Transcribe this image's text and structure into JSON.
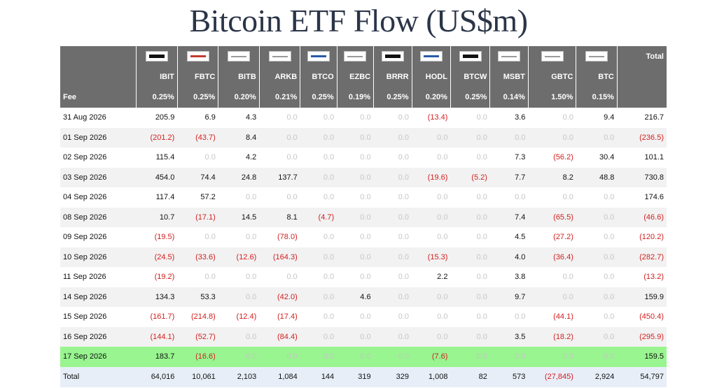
{
  "title": "Bitcoin ETF Flow (US$m)",
  "colors": {
    "header_bg": "#6d6d6d",
    "negative": "#d42020",
    "zero": "#c6c6c6",
    "highlight_row": "#98f58f",
    "total_row_bg": "#e8eef8"
  },
  "table": {
    "total_header": "Total",
    "fee_label": "Fee",
    "columns": [
      {
        "ticker": "IBIT",
        "fee": "0.25%",
        "logo": "blackrock-logo"
      },
      {
        "ticker": "FBTC",
        "fee": "0.25%",
        "logo": "fidelity-logo"
      },
      {
        "ticker": "BITB",
        "fee": "0.20%",
        "logo": "bitwise-logo"
      },
      {
        "ticker": "ARKB",
        "fee": "0.21%",
        "logo": "ark-logo"
      },
      {
        "ticker": "BTCO",
        "fee": "0.25%",
        "logo": "invesco-logo"
      },
      {
        "ticker": "EZBC",
        "fee": "0.19%",
        "logo": "franklin-logo"
      },
      {
        "ticker": "BRRR",
        "fee": "0.25%",
        "logo": "valkyrie-logo"
      },
      {
        "ticker": "HODL",
        "fee": "0.20%",
        "logo": "vaneck-logo"
      },
      {
        "ticker": "BTCW",
        "fee": "0.25%",
        "logo": "wisdomtree-logo"
      },
      {
        "ticker": "MSBT",
        "fee": "0.14%",
        "logo": "morgan-stanley-logo"
      },
      {
        "ticker": "GBTC",
        "fee": "1.50%",
        "logo": "grayscale-logo"
      },
      {
        "ticker": "BTC",
        "fee": "0.15%",
        "logo": "grayscale-mini-logo"
      }
    ],
    "rows": [
      {
        "date": "31 Aug 2026",
        "values": [
          "205.9",
          "6.9",
          "4.3",
          "0.0",
          "0.0",
          "0.0",
          "0.0",
          "(13.4)",
          "0.0",
          "3.6",
          "0.0",
          "9.4"
        ],
        "total": "216.7",
        "highlight": false
      },
      {
        "date": "01 Sep 2026",
        "values": [
          "(201.2)",
          "(43.7)",
          "8.4",
          "0.0",
          "0.0",
          "0.0",
          "0.0",
          "0.0",
          "0.0",
          "0.0",
          "0.0",
          "0.0"
        ],
        "total": "(236.5)",
        "highlight": false
      },
      {
        "date": "02 Sep 2026",
        "values": [
          "115.4",
          "0.0",
          "4.2",
          "0.0",
          "0.0",
          "0.0",
          "0.0",
          "0.0",
          "0.0",
          "7.3",
          "(56.2)",
          "30.4"
        ],
        "total": "101.1",
        "highlight": false
      },
      {
        "date": "03 Sep 2026",
        "values": [
          "454.0",
          "74.4",
          "24.8",
          "137.7",
          "0.0",
          "0.0",
          "0.0",
          "(19.6)",
          "(5.2)",
          "7.7",
          "8.2",
          "48.8"
        ],
        "total": "730.8",
        "highlight": false
      },
      {
        "date": "04 Sep 2026",
        "values": [
          "117.4",
          "57.2",
          "0.0",
          "0.0",
          "0.0",
          "0.0",
          "0.0",
          "0.0",
          "0.0",
          "0.0",
          "0.0",
          "0.0"
        ],
        "total": "174.6",
        "highlight": false
      },
      {
        "date": "08 Sep 2026",
        "values": [
          "10.7",
          "(17.1)",
          "14.5",
          "8.1",
          "(4.7)",
          "0.0",
          "0.0",
          "0.0",
          "0.0",
          "7.4",
          "(65.5)",
          "0.0"
        ],
        "total": "(46.6)",
        "highlight": false
      },
      {
        "date": "09 Sep 2026",
        "values": [
          "(19.5)",
          "0.0",
          "0.0",
          "(78.0)",
          "0.0",
          "0.0",
          "0.0",
          "0.0",
          "0.0",
          "4.5",
          "(27.2)",
          "0.0"
        ],
        "total": "(120.2)",
        "highlight": false
      },
      {
        "date": "10 Sep 2026",
        "values": [
          "(24.5)",
          "(33.6)",
          "(12.6)",
          "(164.3)",
          "0.0",
          "0.0",
          "0.0",
          "(15.3)",
          "0.0",
          "4.0",
          "(36.4)",
          "0.0"
        ],
        "total": "(282.7)",
        "highlight": false
      },
      {
        "date": "11 Sep 2026",
        "values": [
          "(19.2)",
          "0.0",
          "0.0",
          "0.0",
          "0.0",
          "0.0",
          "0.0",
          "2.2",
          "0.0",
          "3.8",
          "0.0",
          "0.0"
        ],
        "total": "(13.2)",
        "highlight": false
      },
      {
        "date": "14 Sep 2026",
        "values": [
          "134.3",
          "53.3",
          "0.0",
          "(42.0)",
          "0.0",
          "4.6",
          "0.0",
          "0.0",
          "0.0",
          "9.7",
          "0.0",
          "0.0"
        ],
        "total": "159.9",
        "highlight": false
      },
      {
        "date": "15 Sep 2026",
        "values": [
          "(161.7)",
          "(214.8)",
          "(12.4)",
          "(17.4)",
          "0.0",
          "0.0",
          "0.0",
          "0.0",
          "0.0",
          "0.0",
          "(44.1)",
          "0.0"
        ],
        "total": "(450.4)",
        "highlight": false
      },
      {
        "date": "16 Sep 2026",
        "values": [
          "(144.1)",
          "(52.7)",
          "0.0",
          "(84.4)",
          "0.0",
          "0.0",
          "0.0",
          "0.0",
          "0.0",
          "3.5",
          "(18.2)",
          "0.0"
        ],
        "total": "(295.9)",
        "highlight": false
      },
      {
        "date": "17 Sep 2026",
        "values": [
          "183.7",
          "(16.6)",
          "0.0",
          "0.0",
          "0.0",
          "0.0",
          "0.0",
          "(7.6)",
          "0.0",
          "0.0",
          "0.0",
          "0.0"
        ],
        "total": "159.5",
        "highlight": true
      }
    ],
    "total_row": {
      "label": "Total",
      "values": [
        "64,016",
        "10,061",
        "2,103",
        "1,084",
        "144",
        "319",
        "329",
        "1,008",
        "82",
        "573",
        "(27,845)",
        "2,924"
      ],
      "total": "54,797"
    }
  }
}
